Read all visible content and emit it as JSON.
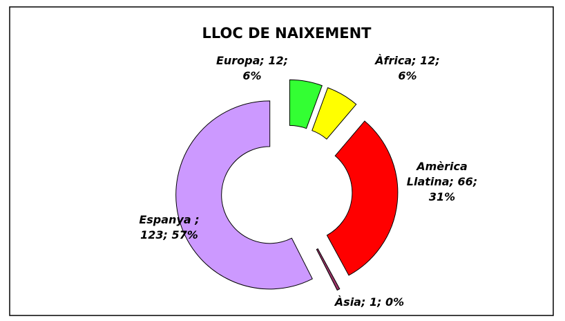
{
  "chart_data": {
    "type": "doughnut",
    "title": "LLOC DE NAIXEMENT",
    "categories": [
      "Europa",
      "Àfrica",
      "Amèrica Llatina",
      "Àsia",
      "Espanya"
    ],
    "values": [
      12,
      12,
      66,
      1,
      123
    ],
    "value_labels": [
      [
        "Europa; 12;",
        "6%"
      ],
      [
        "Àfrica; 12;",
        "6%"
      ],
      [
        "Amèrica",
        "Llatina; 66;",
        "31%"
      ],
      [
        "Àsia; 1; 0%"
      ],
      [
        "Espanya ;",
        "123; 57%"
      ]
    ],
    "colors": [
      "#33ff33",
      "#ffff00",
      "#ff0000",
      "#993366",
      "#cc99ff"
    ]
  }
}
